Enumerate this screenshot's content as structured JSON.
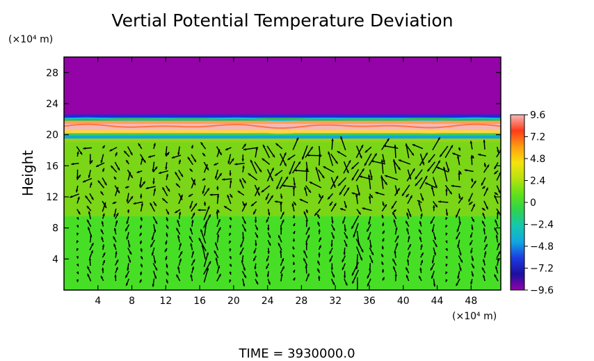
{
  "chart_data": {
    "type": "heatmap",
    "title": "Vertial Potential Temperature Deviation",
    "ylabel": "Height",
    "y_unit": "(×10⁴ m)",
    "x_unit": "(×10⁴ m)",
    "xlim": [
      0,
      51.5
    ],
    "ylim": [
      0,
      30
    ],
    "x_ticks": [
      4,
      8,
      12,
      16,
      20,
      24,
      28,
      32,
      36,
      40,
      44,
      48
    ],
    "x_tick_labels": [
      "4",
      "8",
      "12",
      "16",
      "20",
      "24",
      "28",
      "32",
      "36",
      "40",
      "44",
      "48"
    ],
    "y_ticks": [
      4,
      8,
      12,
      16,
      20,
      24,
      28
    ],
    "y_tick_labels": [
      "4",
      "8",
      "12",
      "16",
      "20",
      "24",
      "28"
    ],
    "colorbar": {
      "min": -9.6,
      "max": 9.6,
      "ticks": [
        9.6,
        7.2,
        4.8,
        2.4,
        0,
        -2.4,
        -4.8,
        -7.2,
        -9.6
      ],
      "tick_labels": [
        "9.6",
        "7.2",
        "4.8",
        "2.4",
        "0",
        "−2.4",
        "−4.8",
        "−7.2",
        "−9.6"
      ]
    },
    "bands": [
      {
        "y_from": 22.6,
        "y_to": 30,
        "value": -9.6,
        "color": "#9303a8"
      },
      {
        "y_from": 22.2,
        "y_to": 22.6,
        "value": -6,
        "color": "#1c2bd6"
      },
      {
        "y_from": 21.8,
        "y_to": 22.2,
        "value": 0,
        "color": "#27b95a"
      },
      {
        "y_from": 21.4,
        "y_to": 21.8,
        "value": 6,
        "color": "#ffa055"
      },
      {
        "y_from": 20.6,
        "y_to": 21.4,
        "value": 9.6,
        "color": "#f6b8b6"
      },
      {
        "y_from": 20.2,
        "y_to": 20.6,
        "value": 5,
        "color": "#fcd94a"
      },
      {
        "y_from": 19.9,
        "y_to": 20.2,
        "value": 0,
        "color": "#3fcc55"
      },
      {
        "y_from": 19.5,
        "y_to": 19.9,
        "value": -4.8,
        "color": "#10a8d8"
      },
      {
        "y_from": 19.1,
        "y_to": 19.5,
        "value": 2,
        "color": "#9bd20e"
      },
      {
        "y_from": 9.5,
        "y_to": 19.1,
        "value": 1.2,
        "color": "#7ad617"
      },
      {
        "y_from": 0,
        "y_to": 9.5,
        "value": 0.4,
        "color": "#47df25"
      }
    ],
    "footer": "TIME  =  3930000.0",
    "colors": {
      "frame": "#000000",
      "cb_stops": [
        "#9303a8",
        "#1c0fa0",
        "#1d3ae0",
        "#11a6e0",
        "#15c7b0",
        "#2ed14f",
        "#5fe11a",
        "#b8e20f",
        "#f5e20d",
        "#ff9d10",
        "#ff3b1a",
        "#f6b8b6"
      ]
    }
  }
}
